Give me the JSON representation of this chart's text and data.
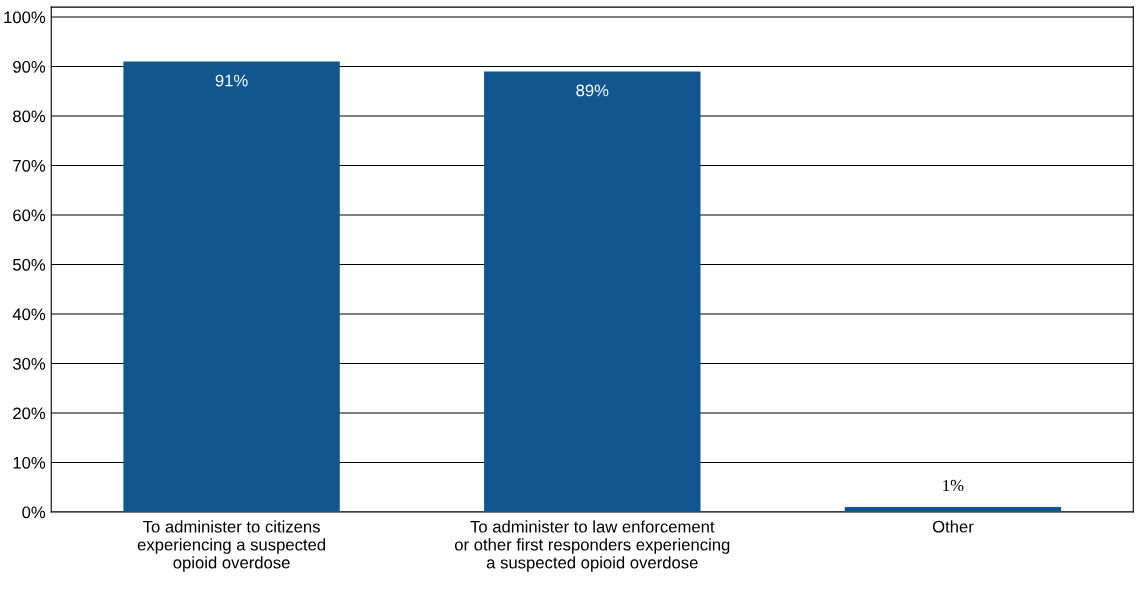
{
  "chart_data": {
    "type": "bar",
    "categories": [
      "To administer to citizens\nexperiencing a suspected\nopioid overdose",
      "To administer to law enforcement\nor other first responders experiencing\na suspected opioid overdose",
      "Other"
    ],
    "values": [
      91,
      89,
      1
    ],
    "color": "#12568f",
    "data_labels": true,
    "value_labels": [
      "91%",
      "89%",
      "1%"
    ],
    "ylim": [
      0,
      102
    ],
    "yticks": [
      {
        "value": 0,
        "label": "0%"
      },
      {
        "value": 10,
        "label": "10%"
      },
      {
        "value": 20,
        "label": "20%"
      },
      {
        "value": 30,
        "label": "30%"
      },
      {
        "value": 40,
        "label": "40%"
      },
      {
        "value": 50,
        "label": "50%"
      },
      {
        "value": 60,
        "label": "60%"
      },
      {
        "value": 70,
        "label": "70%"
      },
      {
        "value": 80,
        "label": "80%"
      },
      {
        "value": 90,
        "label": "90%"
      },
      {
        "value": 100,
        "label": "100%"
      }
    ],
    "grid": "y",
    "legend": false
  }
}
